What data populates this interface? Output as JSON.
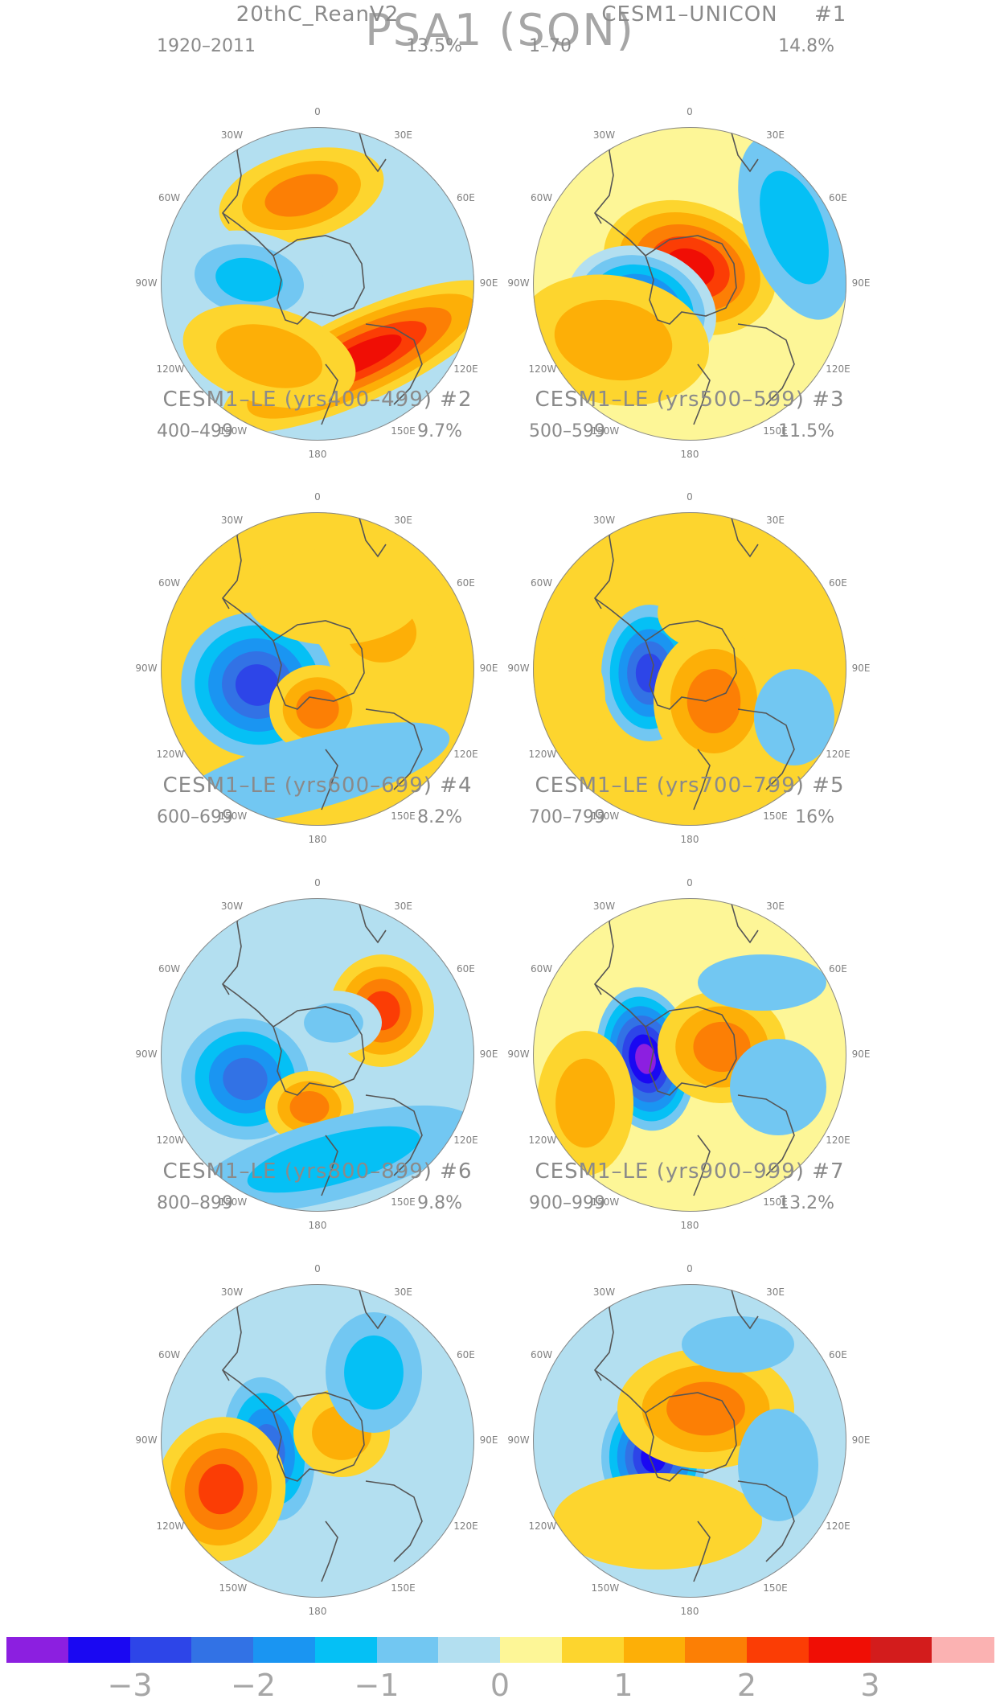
{
  "figure": {
    "title": "PSA1 (SON)",
    "lon_labels": [
      "0",
      "30E",
      "60E",
      "90E",
      "120E",
      "150E",
      "180",
      "150W",
      "120W",
      "90W",
      "60W",
      "30W"
    ]
  },
  "panels": [
    {
      "title": "20thC_ReanV2",
      "tag": "",
      "period": "1920–2011",
      "variance": "13.5%"
    },
    {
      "title": "CESM1–UNICON",
      "tag": "#1",
      "period": "1–70",
      "variance": "14.8%"
    },
    {
      "title": "CESM1–LE (yrs400–499) #2",
      "tag": "",
      "period": "400–499",
      "variance": "9.7%"
    },
    {
      "title": "CESM1–LE (yrs500–599) #3",
      "tag": "",
      "period": "500–599",
      "variance": "11.5%"
    },
    {
      "title": "CESM1–LE (yrs600–699) #4",
      "tag": "",
      "period": "600–699",
      "variance": "8.2%"
    },
    {
      "title": "CESM1–LE (yrs700–799) #5",
      "tag": "",
      "period": "700–799",
      "variance": "16%"
    },
    {
      "title": "CESM1–LE (yrs800–899) #6",
      "tag": "",
      "period": "800–899",
      "variance": "9.8%"
    },
    {
      "title": "CESM1–LE (yrs900–999) #7",
      "tag": "",
      "period": "900–999",
      "variance": "13.2%"
    }
  ],
  "colorbar": {
    "ticks": [
      "−3",
      "−2",
      "−1",
      "0",
      "1",
      "2",
      "3"
    ],
    "colors": [
      "#8c1fe0",
      "#1a08f2",
      "#2d45e8",
      "#3272e5",
      "#1a95f2",
      "#05c0f5",
      "#72c7f2",
      "#b3dff0",
      "#fdf697",
      "#fdd52e",
      "#fdaf07",
      "#fc7f05",
      "#fb3d05",
      "#f00e05",
      "#d31c1c",
      "#fbb2b2"
    ]
  },
  "map_colors": {
    "land": "#555555",
    "rim": "#888888"
  }
}
